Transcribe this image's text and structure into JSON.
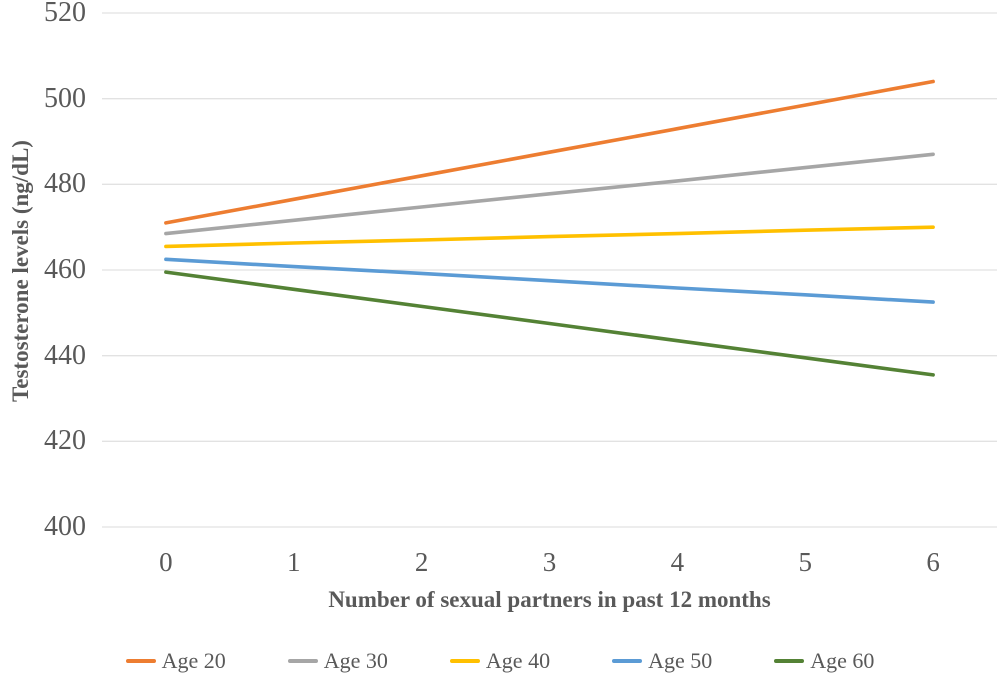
{
  "colors": {
    "axis_text": "#595959",
    "gridline": "#E2E2E2",
    "background": "#FFFFFF"
  },
  "chart_data": {
    "type": "line",
    "title": "",
    "xlabel": "Number of sexual partners in past 12 months",
    "ylabel": "Testosterone levels (ng/dL)",
    "categories": [
      "0",
      "1",
      "2",
      "3",
      "4",
      "5",
      "6"
    ],
    "ylim": [
      400,
      520
    ],
    "yticks": [
      400,
      420,
      440,
      460,
      480,
      500,
      520
    ],
    "grid": "horizontal-only",
    "legend_position": "bottom",
    "series": [
      {
        "name": "Age 20",
        "color": "#ED7D31",
        "values": [
          471.0,
          476.5,
          482.0,
          487.5,
          493.0,
          498.5,
          504.0
        ]
      },
      {
        "name": "Age 30",
        "color": "#A6A6A6",
        "values": [
          468.5,
          471.6,
          474.7,
          477.8,
          480.8,
          483.9,
          487.0
        ]
      },
      {
        "name": "Age 40",
        "color": "#FFC000",
        "values": [
          465.5,
          466.3,
          467.0,
          467.8,
          468.5,
          469.3,
          470.0
        ]
      },
      {
        "name": "Age 50",
        "color": "#5B9BD5",
        "values": [
          462.5,
          460.8,
          459.2,
          457.5,
          455.8,
          454.2,
          452.5
        ]
      },
      {
        "name": "Age 60",
        "color": "#548235",
        "values": [
          459.5,
          455.5,
          451.5,
          447.5,
          443.5,
          439.5,
          435.5
        ]
      }
    ]
  }
}
